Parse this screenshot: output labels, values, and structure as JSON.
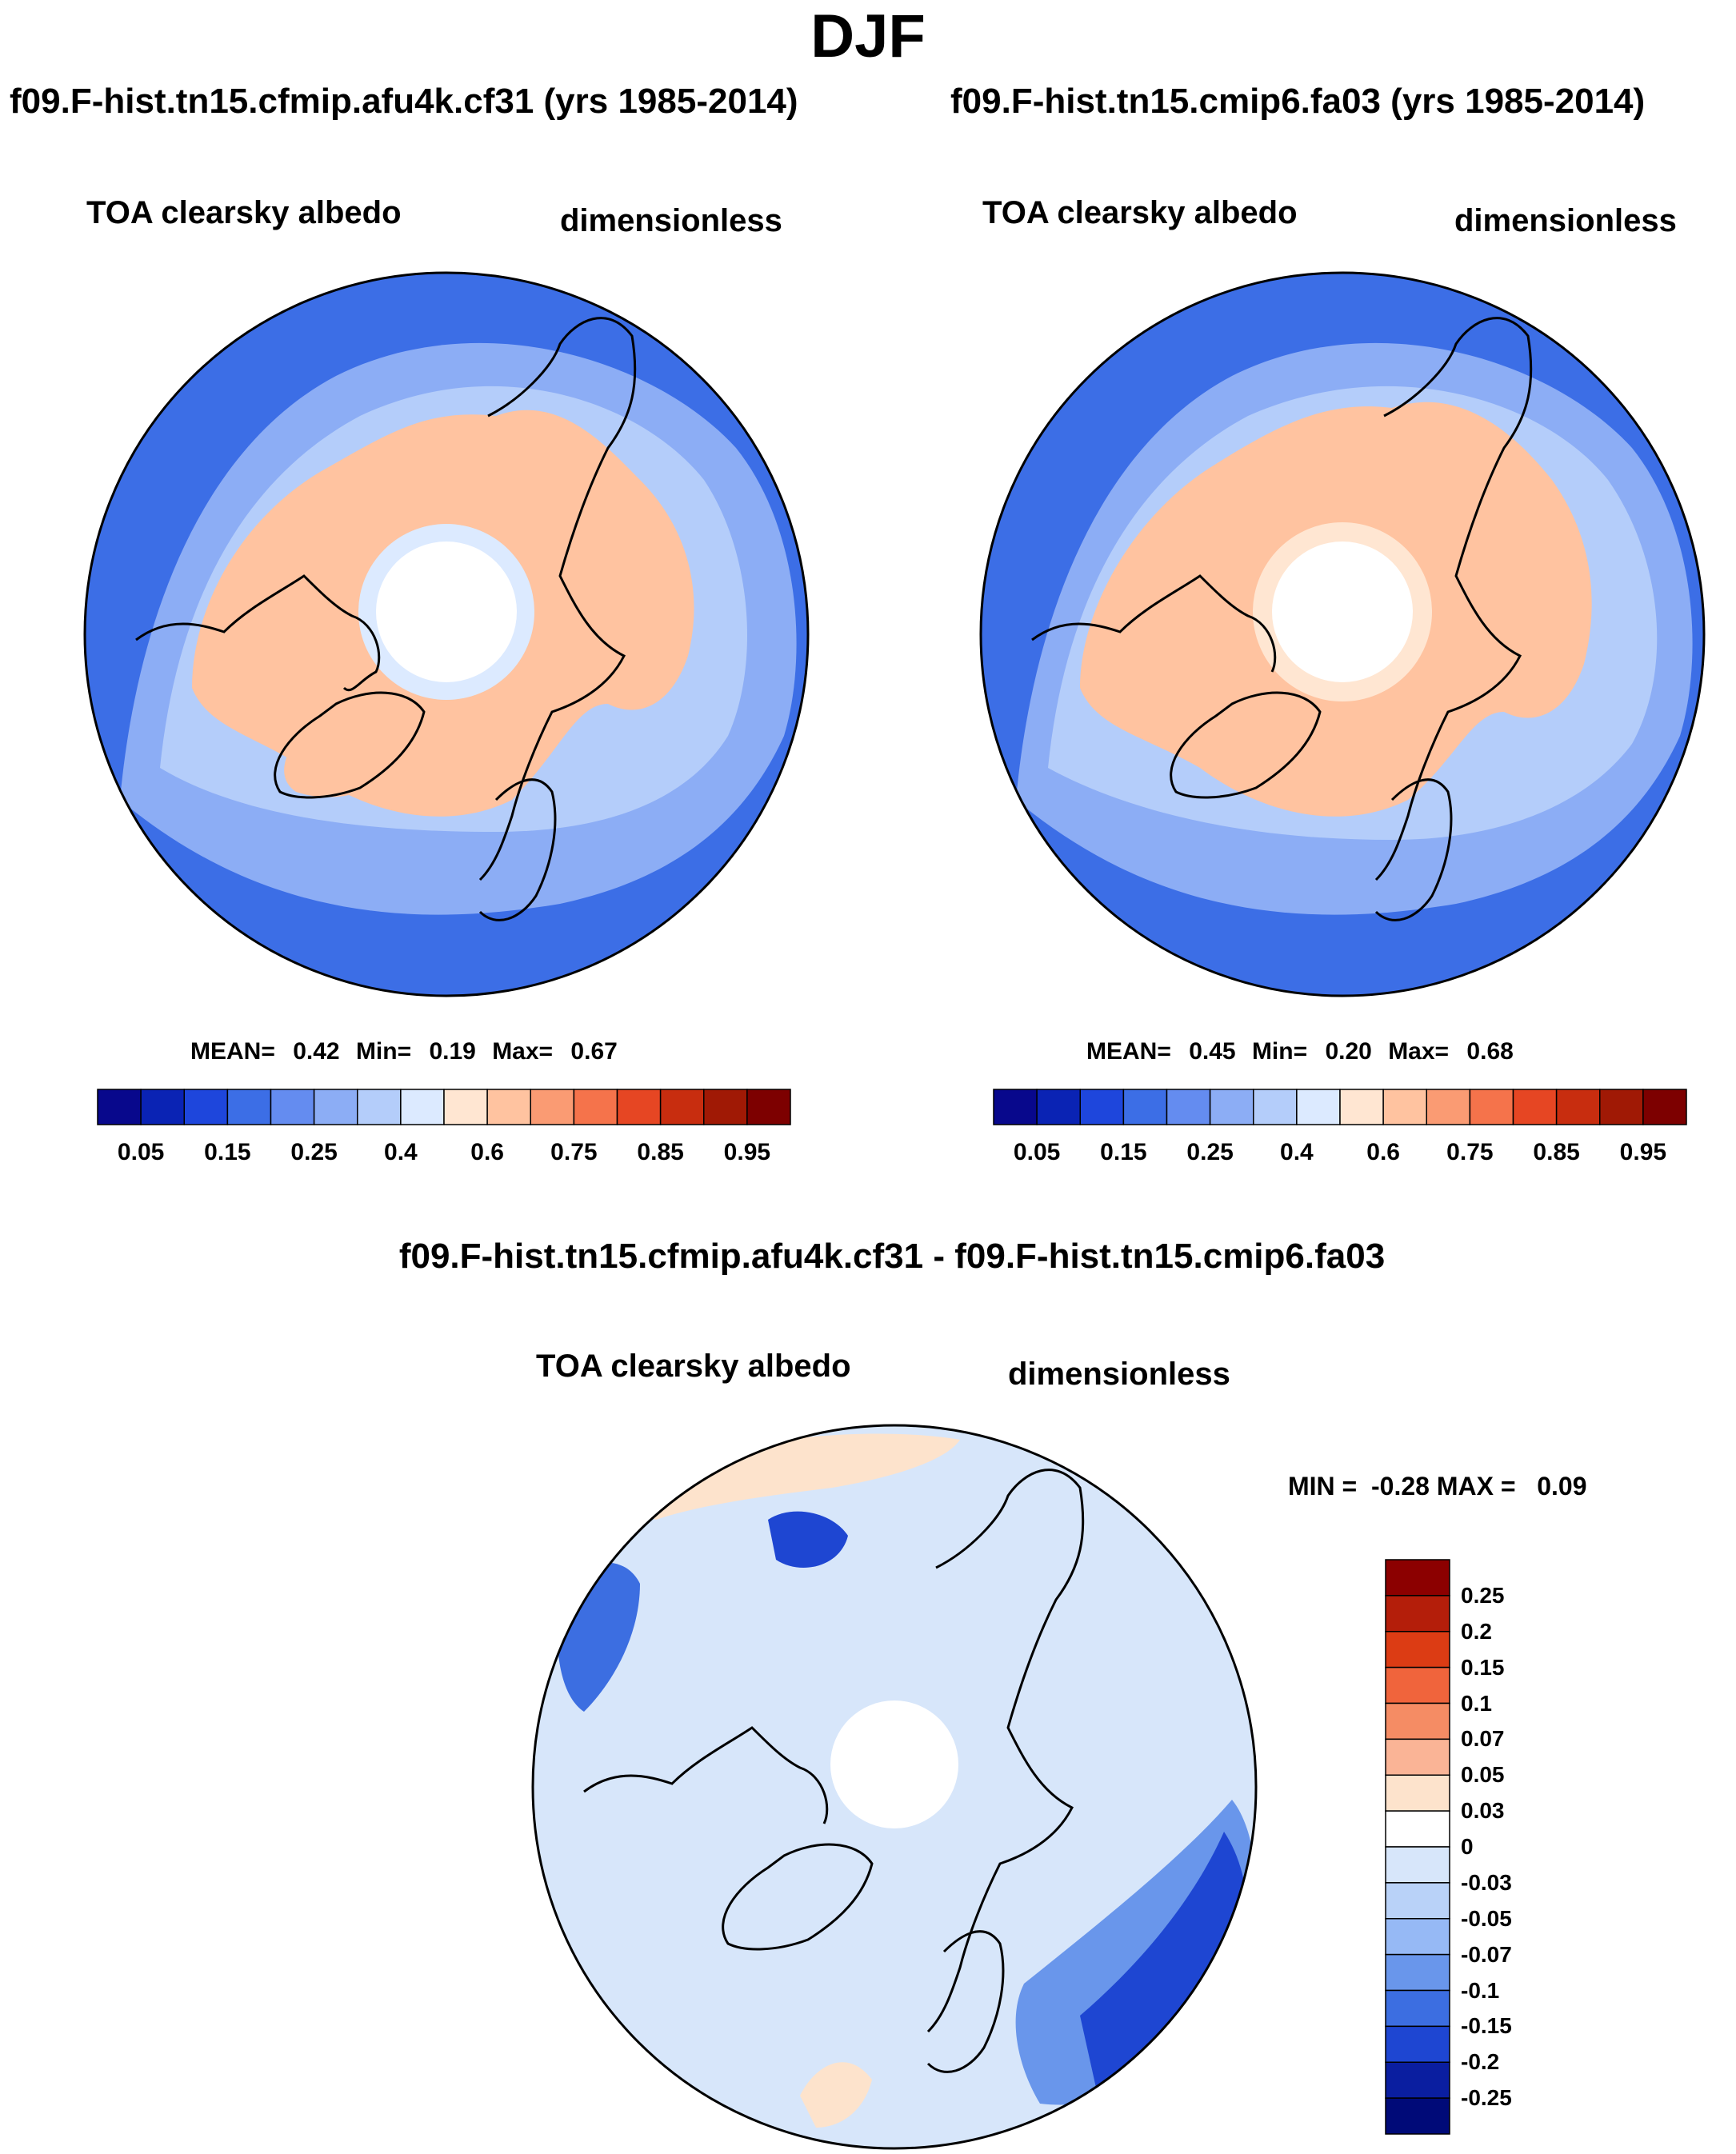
{
  "page": {
    "title": "DJF"
  },
  "palette": {
    "levels": [
      "0.05",
      "0.15",
      "0.25",
      "0.4",
      "0.6",
      "0.75",
      "0.85",
      "0.95"
    ],
    "colors": [
      "#08088c",
      "#0a23b4",
      "#1e46dc",
      "#3c6ee6",
      "#648cf0",
      "#8cadf5",
      "#b4cdfa",
      "#dceaff",
      "#ffe6d2",
      "#ffc3a0",
      "#fa9b73",
      "#f5734b",
      "#e64623",
      "#c82d0f",
      "#a01905",
      "#7d0000"
    ]
  },
  "panels": [
    {
      "id": "left",
      "run_title": "f09.F-hist.tn15.cfmip.afu4k.cf31 (yrs 1985-2014)",
      "variable": "TOA clearsky albedo",
      "units": "dimensionless",
      "stats": {
        "mean_label": "MEAN=",
        "mean": "0.42",
        "min_label": "Min=",
        "min": "0.19",
        "max_label": "Max=",
        "max": "0.67"
      }
    },
    {
      "id": "right",
      "run_title": "f09.F-hist.tn15.cmip6.fa03 (yrs 1985-2014)",
      "variable": "TOA clearsky albedo",
      "units": "dimensionless",
      "stats": {
        "mean_label": "MEAN=",
        "mean": "0.45",
        "min_label": "Min=",
        "min": "0.20",
        "max_label": "Max=",
        "max": "0.68"
      }
    }
  ],
  "diff_panel": {
    "title": "f09.F-hist.tn15.cfmip.afu4k.cf31 - f09.F-hist.tn15.cmip6.fa03",
    "variable": "TOA clearsky albedo",
    "units": "dimensionless",
    "min_max_text": "MIN =  -0.28 MAX =   0.09",
    "levels": [
      "0.25",
      "0.2",
      "0.15",
      "0.1",
      "0.07",
      "0.05",
      "0.03",
      "0",
      "-0.03",
      "-0.05",
      "-0.07",
      "-0.1",
      "-0.15",
      "-0.2",
      "-0.25"
    ],
    "colors": [
      "#8c0000",
      "#b41e0a",
      "#dc3c14",
      "#f0643c",
      "#f58c64",
      "#fab496",
      "#fde3cc",
      "#ffffff",
      "#d7e6fa",
      "#b9d2f8",
      "#96b9f5",
      "#6996eb",
      "#3c6ee1",
      "#1e46d2",
      "#0a1ea0",
      "#000a78"
    ]
  },
  "chart_data": [
    {
      "type": "heatmap",
      "projection": "north polar stereographic",
      "title": "f09.F-hist.tn15.cfmip.afu4k.cf31 (yrs 1985-2014)",
      "variable": "TOA clearsky albedo",
      "units": "dimensionless",
      "season": "DJF",
      "colorbar_levels": [
        0.05,
        0.15,
        0.25,
        0.4,
        0.6,
        0.75,
        0.85,
        0.95
      ],
      "mean": 0.42,
      "min": 0.19,
      "max": 0.67
    },
    {
      "type": "heatmap",
      "projection": "north polar stereographic",
      "title": "f09.F-hist.tn15.cmip6.fa03 (yrs 1985-2014)",
      "variable": "TOA clearsky albedo",
      "units": "dimensionless",
      "season": "DJF",
      "colorbar_levels": [
        0.05,
        0.15,
        0.25,
        0.4,
        0.6,
        0.75,
        0.85,
        0.95
      ],
      "mean": 0.45,
      "min": 0.2,
      "max": 0.68
    },
    {
      "type": "heatmap",
      "projection": "north polar stereographic",
      "title": "f09.F-hist.tn15.cfmip.afu4k.cf31 - f09.F-hist.tn15.cmip6.fa03",
      "variable": "TOA clearsky albedo",
      "units": "dimensionless",
      "season": "DJF",
      "colorbar_levels": [
        0.25,
        0.2,
        0.15,
        0.1,
        0.07,
        0.05,
        0.03,
        0,
        -0.03,
        -0.05,
        -0.07,
        -0.1,
        -0.15,
        -0.2,
        -0.25
      ],
      "min": -0.28,
      "max": 0.09
    }
  ]
}
